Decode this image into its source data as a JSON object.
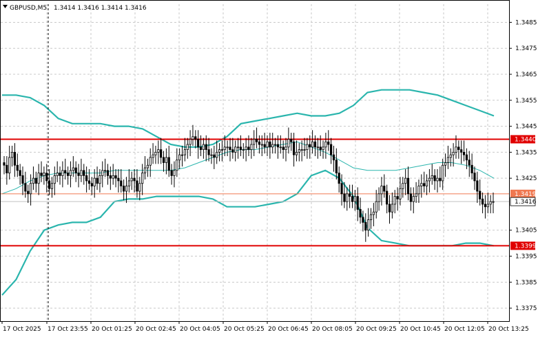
{
  "header": {
    "symbol_label": "GBPUSD,M5",
    "ohlc_label": "1.3414 1.3416 1.3414 1.3416",
    "triangle_icon": "triangle-down-icon"
  },
  "chart_data": {
    "type": "candlestick",
    "symbol": "GBPUSD",
    "timeframe": "M5",
    "ylim": [
      1.337,
      1.3492
    ],
    "y_ticks": [
      "1.3485",
      "1.3475",
      "1.3465",
      "1.3455",
      "1.3445",
      "1.3435",
      "1.3425",
      "1.3405",
      "1.3395",
      "1.3385",
      "1.3375"
    ],
    "x_ticks": [
      "17 Oct 2025",
      "17 Oct 23:55",
      "20 Oct 01:25",
      "20 Oct 02:45",
      "20 Oct 04:05",
      "20 Oct 05:25",
      "20 Oct 06:45",
      "20 Oct 08:05",
      "20 Oct 09:25",
      "20 Oct 10:45",
      "20 Oct 12:05",
      "20 Oct 13:25"
    ],
    "levels": [
      {
        "value": 1.344,
        "label": "1.3440",
        "color": "#e00000",
        "width": 2
      },
      {
        "value": 1.3419,
        "label": "1.3419",
        "color": "#f07850",
        "width": 1
      },
      {
        "value": 1.3399,
        "label": "1.3399",
        "color": "#e00000",
        "width": 2
      }
    ],
    "current_price": {
      "value": 1.3416,
      "label": "1.3416"
    },
    "bollinger_upper": [
      1.3457,
      1.3457,
      1.3456,
      1.3453,
      1.3448,
      1.3446,
      1.3446,
      1.3446,
      1.3445,
      1.3445,
      1.3444,
      1.3441,
      1.3438,
      1.3437,
      1.3437,
      1.3438,
      1.3441,
      1.3446,
      1.3447,
      1.3448,
      1.3449,
      1.345,
      1.3449,
      1.3449,
      1.345,
      1.3453,
      1.3458,
      1.3459,
      1.3459,
      1.3459,
      1.3458,
      1.3457,
      1.3455,
      1.3453,
      1.3451,
      1.3449
    ],
    "bollinger_middle": [
      1.3419,
      1.3421,
      1.3424,
      1.3426,
      1.3427,
      1.3427,
      1.3427,
      1.3427,
      1.3428,
      1.3428,
      1.3428,
      1.3428,
      1.3428,
      1.3429,
      1.3431,
      1.3433,
      1.3435,
      1.3436,
      1.3436,
      1.3437,
      1.3438,
      1.3439,
      1.3437,
      1.3435,
      1.3432,
      1.3429,
      1.3428,
      1.3428,
      1.3428,
      1.3429,
      1.343,
      1.3431,
      1.3431,
      1.343,
      1.3428,
      1.3425
    ],
    "bollinger_lower": [
      1.338,
      1.3386,
      1.3397,
      1.3405,
      1.3407,
      1.3408,
      1.3408,
      1.341,
      1.3416,
      1.3417,
      1.3417,
      1.3418,
      1.3418,
      1.3418,
      1.3418,
      1.3417,
      1.3414,
      1.3414,
      1.3414,
      1.3415,
      1.3416,
      1.3419,
      1.3426,
      1.3428,
      1.3425,
      1.3418,
      1.3406,
      1.3401,
      1.34,
      1.3399,
      1.3399,
      1.3399,
      1.3399,
      1.34,
      1.34,
      1.3399
    ],
    "closes": [
      1.343,
      1.3427,
      1.3433,
      1.3435,
      1.343,
      1.3428,
      1.3426,
      1.3423,
      1.342,
      1.3419,
      1.3423,
      1.3425,
      1.3423,
      1.3427,
      1.3426,
      1.3427,
      1.3424,
      1.3421,
      1.3423,
      1.3426,
      1.3427,
      1.3426,
      1.3428,
      1.3427,
      1.3426,
      1.3428,
      1.3429,
      1.3427,
      1.3426,
      1.3428,
      1.3426,
      1.3424,
      1.3423,
      1.3422,
      1.3425,
      1.3423,
      1.3426,
      1.3428,
      1.3428,
      1.3426,
      1.3425,
      1.3426,
      1.3425,
      1.3424,
      1.3422,
      1.342,
      1.3422,
      1.3424,
      1.3425,
      1.3424,
      1.342,
      1.3423,
      1.3427,
      1.3429,
      1.343,
      1.3433,
      1.3434,
      1.3435,
      1.3436,
      1.3433,
      1.3431,
      1.3433,
      1.3428,
      1.3426,
      1.3428,
      1.3432,
      1.3434,
      1.3434,
      1.3436,
      1.3438,
      1.344,
      1.3441,
      1.344,
      1.3437,
      1.3436,
      1.3438,
      1.3436,
      1.3434,
      1.3434,
      1.3433,
      1.3435,
      1.3436,
      1.3436,
      1.3437,
      1.3437,
      1.3436,
      1.3435,
      1.3437,
      1.3437,
      1.3436,
      1.3436,
      1.3437,
      1.3436,
      1.3438,
      1.344,
      1.3439,
      1.3438,
      1.3438,
      1.3437,
      1.3439,
      1.3437,
      1.3438,
      1.3438,
      1.3437,
      1.3437,
      1.3436,
      1.3437,
      1.344,
      1.3439,
      1.3434,
      1.3435,
      1.3436,
      1.3436,
      1.3436,
      1.3438,
      1.3437,
      1.3439,
      1.3437,
      1.3437,
      1.3436,
      1.3437,
      1.3439,
      1.3438,
      1.3434,
      1.3432,
      1.3427,
      1.3423,
      1.3419,
      1.3416,
      1.3419,
      1.3418,
      1.3416,
      1.3418,
      1.3413,
      1.341,
      1.3408,
      1.3405,
      1.3409,
      1.3411,
      1.3412,
      1.3416,
      1.3419,
      1.3422,
      1.342,
      1.3415,
      1.3412,
      1.3415,
      1.3418,
      1.3417,
      1.3421,
      1.3423,
      1.3425,
      1.3419,
      1.3416,
      1.3418,
      1.3419,
      1.3422,
      1.3423,
      1.3422,
      1.3424,
      1.3425,
      1.3426,
      1.3424,
      1.3425,
      1.3424,
      1.343,
      1.3431,
      1.3433,
      1.3434,
      1.3435,
      1.3437,
      1.3436,
      1.3435,
      1.3434,
      1.3432,
      1.343,
      1.3427,
      1.3424,
      1.342,
      1.3417,
      1.3415,
      1.3414,
      1.3415,
      1.3416,
      1.3416
    ]
  }
}
